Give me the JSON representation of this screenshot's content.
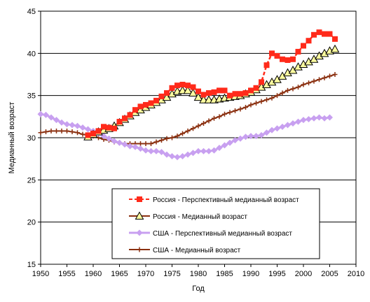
{
  "chart_data": {
    "type": "line",
    "xlabel": "Год",
    "ylabel": "Медианный возраст",
    "xlim": [
      1950,
      2010
    ],
    "ylim": [
      15,
      45
    ],
    "x_ticks": [
      1950,
      1955,
      1960,
      1965,
      1970,
      1975,
      1980,
      1985,
      1990,
      1995,
      2000,
      2005,
      2010
    ],
    "y_ticks": [
      15,
      20,
      25,
      30,
      35,
      40,
      45
    ],
    "grid": "horizontal",
    "legend_position": "inside bottom-right",
    "series": [
      {
        "name": "Россия - Перспективный медианный возраст",
        "color": "#ff2a1a",
        "marker": "square",
        "x": [
          1959,
          1960,
          1961,
          1962,
          1963,
          1964,
          1965,
          1966,
          1967,
          1968,
          1969,
          1970,
          1971,
          1972,
          1973,
          1974,
          1975,
          1976,
          1977,
          1978,
          1979,
          1980,
          1981,
          1982,
          1983,
          1984,
          1985,
          1986,
          1987,
          1988,
          1989,
          1990,
          1991,
          1992,
          1993,
          1994,
          1995,
          1996,
          1997,
          1998,
          1999,
          2000,
          2001,
          2002,
          2003,
          2004,
          2005,
          2006
        ],
        "y": [
          30.3,
          30.5,
          30.8,
          31.3,
          31.2,
          31.1,
          31.9,
          32.3,
          32.7,
          33.3,
          33.7,
          33.9,
          34.1,
          34.4,
          34.9,
          35.3,
          35.9,
          36.2,
          36.3,
          36.2,
          36.0,
          35.5,
          35.1,
          35.3,
          35.4,
          35.6,
          35.6,
          35.0,
          35.2,
          35.2,
          35.3,
          35.6,
          35.9,
          36.6,
          38.6,
          40.0,
          39.7,
          39.3,
          39.2,
          39.3,
          40.2,
          40.9,
          41.5,
          42.2,
          42.5,
          42.3,
          42.3,
          41.7
        ]
      },
      {
        "name": "Россия - Медианный возраст",
        "color": "#8b1a10",
        "marker": "triangle",
        "x": [
          1959,
          1960,
          1961,
          1962,
          1963,
          1964,
          1965,
          1966,
          1967,
          1968,
          1969,
          1970,
          1971,
          1972,
          1973,
          1974,
          1975,
          1976,
          1977,
          1978,
          1979,
          1980,
          1981,
          1982,
          1983,
          1984,
          1985,
          1986,
          1987,
          1988,
          1989,
          1990,
          1991,
          1992,
          1993,
          1994,
          1995,
          1996,
          1997,
          1998,
          1999,
          2000,
          2001,
          2002,
          2003,
          2004,
          2005,
          2006
        ],
        "y": [
          30.1,
          30.4,
          30.7,
          30.9,
          31.1,
          31.4,
          31.8,
          32.2,
          32.6,
          33.0,
          33.3,
          33.6,
          33.9,
          34.2,
          34.5,
          34.8,
          35.2,
          35.5,
          35.6,
          35.6,
          35.3,
          34.8,
          34.5,
          34.5,
          34.5,
          34.6,
          34.7,
          34.8,
          34.9,
          35.0,
          35.2,
          35.4,
          35.7,
          36.0,
          36.3,
          36.6,
          36.9,
          37.3,
          37.7,
          38.0,
          38.4,
          38.7,
          39.0,
          39.3,
          39.7,
          40.0,
          40.3,
          40.5
        ]
      },
      {
        "name": "США - Перспективный медианный возраст",
        "color": "#c8a0f0",
        "marker": "diamond",
        "x": [
          1950,
          1951,
          1952,
          1953,
          1954,
          1955,
          1956,
          1957,
          1958,
          1959,
          1960,
          1961,
          1962,
          1963,
          1964,
          1965,
          1966,
          1967,
          1968,
          1969,
          1970,
          1971,
          1972,
          1973,
          1974,
          1975,
          1976,
          1977,
          1978,
          1979,
          1980,
          1981,
          1982,
          1983,
          1984,
          1985,
          1986,
          1987,
          1988,
          1989,
          1990,
          1991,
          1992,
          1993,
          1994,
          1995,
          1996,
          1997,
          1998,
          1999,
          2000,
          2001,
          2002,
          2003,
          2004,
          2005
        ],
        "y": [
          32.8,
          32.7,
          32.4,
          32.1,
          31.8,
          31.6,
          31.5,
          31.4,
          31.2,
          31.0,
          30.8,
          30.5,
          30.2,
          29.9,
          29.6,
          29.4,
          29.2,
          29.0,
          28.9,
          28.7,
          28.5,
          28.4,
          28.4,
          28.3,
          28.0,
          27.8,
          27.7,
          27.8,
          28.0,
          28.2,
          28.4,
          28.4,
          28.4,
          28.5,
          28.8,
          29.1,
          29.4,
          29.7,
          29.9,
          30.1,
          30.2,
          30.2,
          30.3,
          30.6,
          30.9,
          31.1,
          31.3,
          31.5,
          31.7,
          31.9,
          32.1,
          32.2,
          32.3,
          32.4,
          32.3,
          32.4
        ]
      },
      {
        "name": "США - Медианный возраст",
        "color": "#8b3010",
        "marker": "plus",
        "x": [
          1950,
          1951,
          1952,
          1953,
          1954,
          1955,
          1956,
          1957,
          1958,
          1959,
          1960,
          1961,
          1962,
          1963,
          1964,
          1965,
          1966,
          1967,
          1968,
          1969,
          1970,
          1971,
          1972,
          1973,
          1974,
          1975,
          1976,
          1977,
          1978,
          1979,
          1980,
          1981,
          1982,
          1983,
          1984,
          1985,
          1986,
          1987,
          1988,
          1989,
          1990,
          1991,
          1992,
          1993,
          1994,
          1995,
          1996,
          1997,
          1998,
          1999,
          2000,
          2001,
          2002,
          2003,
          2004,
          2005,
          2006
        ],
        "y": [
          30.6,
          30.7,
          30.8,
          30.8,
          30.8,
          30.8,
          30.7,
          30.6,
          30.4,
          30.3,
          30.2,
          30.0,
          29.8,
          29.7,
          29.5,
          29.4,
          29.3,
          29.3,
          29.3,
          29.3,
          29.3,
          29.3,
          29.5,
          29.7,
          29.9,
          30.0,
          30.2,
          30.5,
          30.8,
          31.1,
          31.4,
          31.7,
          32.0,
          32.3,
          32.5,
          32.8,
          33.0,
          33.2,
          33.4,
          33.6,
          33.9,
          34.1,
          34.3,
          34.5,
          34.7,
          35.0,
          35.3,
          35.6,
          35.8,
          36.0,
          36.3,
          36.5,
          36.7,
          36.9,
          37.1,
          37.3,
          37.5
        ]
      }
    ]
  }
}
